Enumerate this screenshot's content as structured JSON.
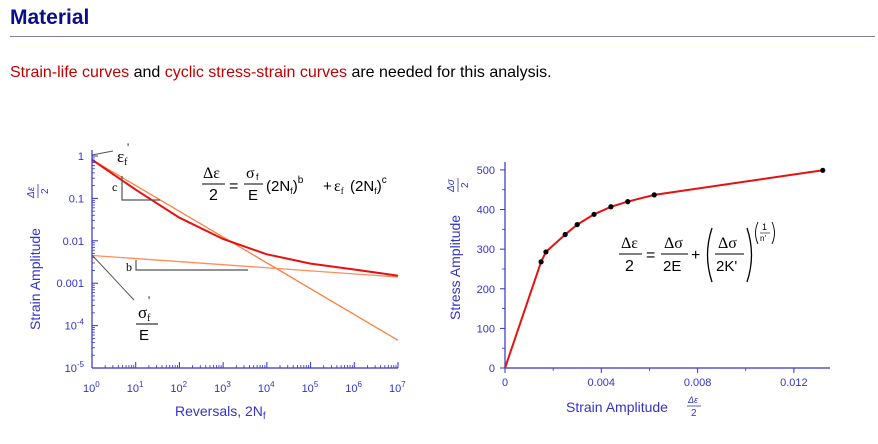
{
  "page": {
    "title": "Material",
    "intro": {
      "link1": "Strain-life curves",
      "text1": " and ",
      "link2": "cyclic stress-strain curves",
      "text2": " are needed for this analysis."
    },
    "accent_color": "#0c0c8c",
    "link_color": "#c00000",
    "axis_color": "#3333cc"
  },
  "chart_data": [
    {
      "type": "line",
      "scale": "log-log",
      "xlabel": "Reversals, 2N",
      "xlabel_sub": "f",
      "ylabel": "Strain Amplitude",
      "ylabel_frac_num": "Δε",
      "ylabel_frac_den": "2",
      "x_ticks": [
        {
          "base": "10",
          "exp": "0"
        },
        {
          "base": "10",
          "exp": "1"
        },
        {
          "base": "10",
          "exp": "2"
        },
        {
          "base": "10",
          "exp": "3"
        },
        {
          "base": "10",
          "exp": "4"
        },
        {
          "base": "10",
          "exp": "5"
        },
        {
          "base": "10",
          "exp": "6"
        },
        {
          "base": "10",
          "exp": "7"
        }
      ],
      "y_ticks": [
        {
          "text": "1"
        },
        {
          "text": "0.1"
        },
        {
          "text": "0.01"
        },
        {
          "text": "0.001"
        },
        {
          "base": "10",
          "exp": "-4"
        },
        {
          "base": "10",
          "exp": "-5"
        }
      ],
      "xlim": [
        1,
        10000000
      ],
      "ylim": [
        1e-05,
        1
      ],
      "series": [
        {
          "role": "plastic",
          "x": [
            1,
            10000000
          ],
          "y": [
            0.82,
            4.5e-05
          ]
        },
        {
          "role": "elastic",
          "x": [
            1,
            10000000
          ],
          "y": [
            0.0045,
            0.0014
          ]
        },
        {
          "role": "total",
          "x": [
            1,
            10,
            100,
            1000,
            10000,
            100000,
            1000000,
            10000000
          ],
          "y": [
            0.82,
            0.16,
            0.035,
            0.011,
            0.0048,
            0.0029,
            0.0021,
            0.0015
          ]
        }
      ],
      "annotations": {
        "c_label": "c",
        "b_label": "b",
        "epsf_sym": "ε",
        "epsf_sub": "f",
        "epsf_prime": "'",
        "sigmaf_sym": "σ",
        "sigmaf_sub": "f",
        "sigmaf_prime": "'",
        "E": "E",
        "eq_lhs_num": "Δε",
        "eq_lhs_den": "2",
        "eq_term1_num": "σ",
        "eq_term1_den": "E",
        "eq_2N": "(2N",
        "eq_sub_f": "f",
        "eq_close": ")",
        "eq_exp_b": "b",
        "eq_plus": "+",
        "eq_eps": "ε",
        "eq_exp_c": "c",
        "eq_equals": "="
      }
    },
    {
      "type": "line",
      "xlabel": "Strain Amplitude",
      "xlabel_frac_num": "Δε",
      "xlabel_frac_den": "2",
      "ylabel": "Stress Amplitude",
      "ylabel_frac_num": "Δσ",
      "ylabel_frac_den": "2",
      "xlim": [
        0,
        0.0135
      ],
      "ylim": [
        0,
        520
      ],
      "x_ticks": [
        "0",
        "0.004",
        "0.008",
        "0.012"
      ],
      "y_ticks": [
        "0",
        "100",
        "200",
        "300",
        "400",
        "500"
      ],
      "series": [
        {
          "x": [
            0,
            0.0015,
            0.0017,
            0.0025,
            0.003,
            0.0037,
            0.0044,
            0.0051,
            0.0062,
            0.0132
          ],
          "y": [
            0,
            268,
            293,
            337,
            362,
            388,
            407,
            420,
            437,
            499
          ]
        }
      ],
      "markers": {
        "x": [
          0.0015,
          0.0017,
          0.0025,
          0.003,
          0.0037,
          0.0044,
          0.0051,
          0.0062,
          0.0132
        ],
        "y": [
          268,
          293,
          337,
          362,
          388,
          407,
          420,
          437,
          499
        ]
      },
      "equation": {
        "lhs_num": "Δε",
        "lhs_den": "2",
        "t1_num": "Δσ",
        "t1_den": "2E",
        "t2_num": "Δσ",
        "t2_den": "2K'",
        "exp_num": "1",
        "exp_den": "n'",
        "equals": "=",
        "plus": "+"
      }
    }
  ]
}
